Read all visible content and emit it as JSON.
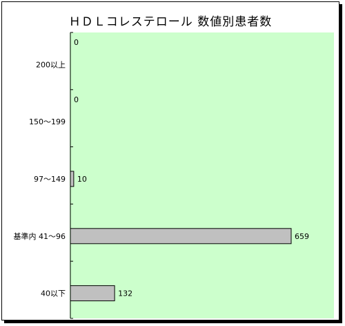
{
  "chart_data": {
    "type": "bar",
    "orientation": "horizontal",
    "title": "ＨＤＬコレステロール 数値別患者数",
    "categories": [
      "200以上",
      "150～199",
      "97～149",
      "基準内 41～96",
      "40以下"
    ],
    "values": [
      0,
      0,
      10,
      659,
      132
    ],
    "xlim": [
      0,
      700
    ],
    "colors": {
      "plot_bg": "#ccffcc",
      "bar_fill": "#c0c0c0",
      "bar_stroke": "#000000"
    },
    "grid": false,
    "legend": "none"
  }
}
